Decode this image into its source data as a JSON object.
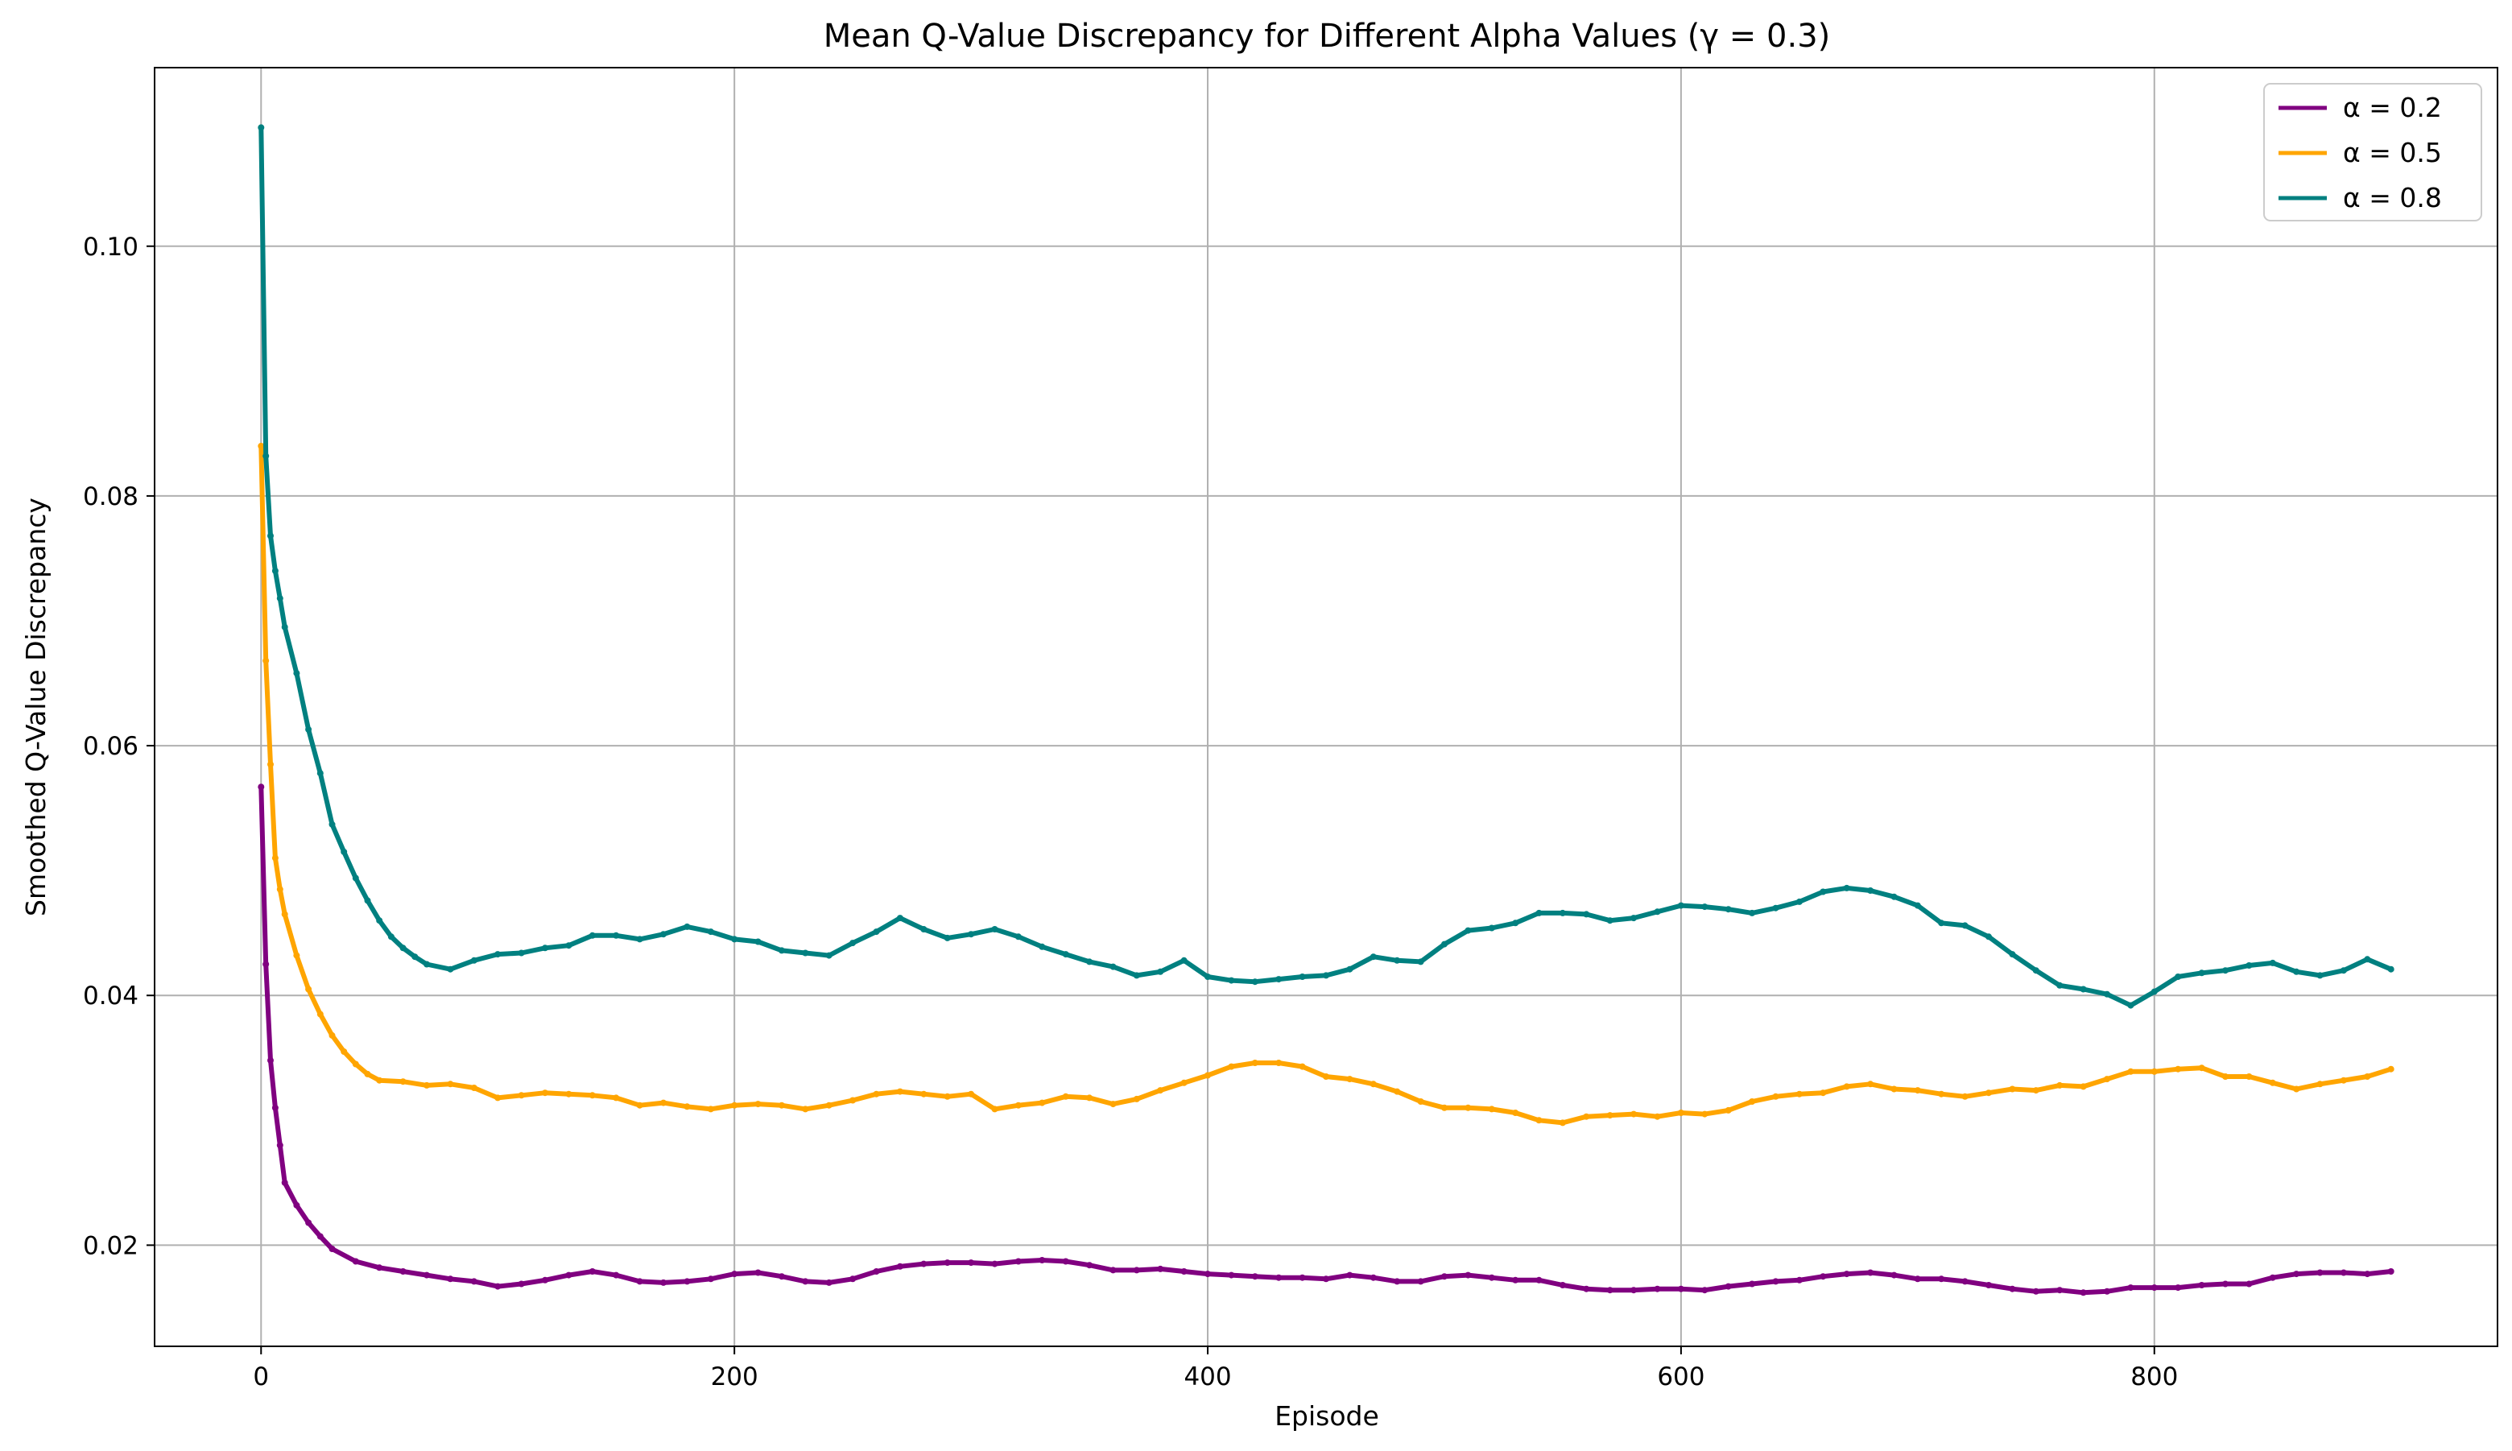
{
  "chart_data": {
    "type": "line",
    "title": "Mean Q-Value Discrepancy for Different Alpha Values (γ = 0.3)",
    "xlabel": "Episode",
    "ylabel": "Smoothed Q-Value Discrepancy",
    "xlim": [
      -45,
      945
    ],
    "ylim": [
      0.0119,
      0.1143
    ],
    "xticks": [
      0,
      200,
      400,
      600,
      800
    ],
    "xtick_labels": [
      "0",
      "200",
      "400",
      "600",
      "800"
    ],
    "yticks": [
      0.02,
      0.04,
      0.06,
      0.08,
      0.1
    ],
    "ytick_labels": [
      "0.02",
      "0.04",
      "0.06",
      "0.08",
      "0.10"
    ],
    "grid": true,
    "legend_position": "top-right",
    "series": [
      {
        "name": "α = 0.2",
        "color": "#800080",
        "x": [
          0,
          2,
          4,
          6,
          8,
          10,
          15,
          20,
          25,
          30,
          40,
          50,
          60,
          70,
          80,
          90,
          100,
          110,
          120,
          130,
          140,
          150,
          160,
          170,
          180,
          190,
          200,
          210,
          220,
          230,
          240,
          250,
          260,
          270,
          280,
          290,
          300,
          310,
          320,
          330,
          340,
          350,
          360,
          370,
          380,
          390,
          400,
          410,
          420,
          430,
          440,
          450,
          460,
          470,
          480,
          490,
          500,
          510,
          520,
          530,
          540,
          550,
          560,
          570,
          580,
          590,
          600,
          610,
          620,
          630,
          640,
          650,
          660,
          670,
          680,
          690,
          700,
          710,
          720,
          730,
          740,
          750,
          760,
          770,
          780,
          790,
          800,
          810,
          820,
          830,
          840,
          850,
          860,
          870,
          880,
          890,
          900
        ],
        "values": [
          0.0567,
          0.0425,
          0.0348,
          0.031,
          0.028,
          0.025,
          0.0232,
          0.0218,
          0.0207,
          0.0197,
          0.0187,
          0.0182,
          0.0179,
          0.0176,
          0.0173,
          0.0171,
          0.0167,
          0.0169,
          0.0172,
          0.0176,
          0.0179,
          0.0176,
          0.0171,
          0.017,
          0.0171,
          0.0173,
          0.0177,
          0.0178,
          0.0175,
          0.0171,
          0.017,
          0.0173,
          0.0179,
          0.0183,
          0.0185,
          0.0186,
          0.0186,
          0.0185,
          0.0187,
          0.0188,
          0.0187,
          0.0184,
          0.018,
          0.018,
          0.0181,
          0.0179,
          0.0177,
          0.0176,
          0.0175,
          0.0174,
          0.0174,
          0.0173,
          0.0176,
          0.0174,
          0.0171,
          0.0171,
          0.0175,
          0.0176,
          0.0174,
          0.0172,
          0.0172,
          0.0168,
          0.0165,
          0.0164,
          0.0164,
          0.0165,
          0.0165,
          0.0164,
          0.0167,
          0.0169,
          0.0171,
          0.0172,
          0.0175,
          0.0177,
          0.0178,
          0.0176,
          0.0173,
          0.0173,
          0.0171,
          0.0168,
          0.0165,
          0.0163,
          0.0164,
          0.0162,
          0.0163,
          0.0166,
          0.0166,
          0.0166,
          0.0168,
          0.0169,
          0.0169,
          0.0174,
          0.0177,
          0.0178,
          0.0178,
          0.0177,
          0.0179
        ]
      },
      {
        "name": "α = 0.5",
        "color": "#FFA500",
        "x": [
          0,
          2,
          4,
          6,
          8,
          10,
          15,
          20,
          25,
          30,
          35,
          40,
          45,
          50,
          60,
          70,
          80,
          90,
          100,
          110,
          120,
          130,
          140,
          150,
          160,
          170,
          180,
          190,
          200,
          210,
          220,
          230,
          240,
          250,
          260,
          270,
          280,
          290,
          300,
          310,
          320,
          330,
          340,
          350,
          360,
          370,
          380,
          390,
          400,
          410,
          420,
          430,
          440,
          450,
          460,
          470,
          480,
          490,
          500,
          510,
          520,
          530,
          540,
          550,
          560,
          570,
          580,
          590,
          600,
          610,
          620,
          630,
          640,
          650,
          660,
          670,
          680,
          690,
          700,
          710,
          720,
          730,
          740,
          750,
          760,
          770,
          780,
          790,
          800,
          810,
          820,
          830,
          840,
          850,
          860,
          870,
          880,
          890,
          900
        ],
        "values": [
          0.084,
          0.0668,
          0.0585,
          0.051,
          0.0485,
          0.0465,
          0.0432,
          0.0405,
          0.0385,
          0.0368,
          0.0355,
          0.0345,
          0.0337,
          0.0332,
          0.0331,
          0.0328,
          0.0329,
          0.0326,
          0.0318,
          0.032,
          0.0322,
          0.0321,
          0.032,
          0.0318,
          0.0312,
          0.0314,
          0.0311,
          0.0309,
          0.0312,
          0.0313,
          0.0312,
          0.0309,
          0.0312,
          0.0316,
          0.0321,
          0.0323,
          0.0321,
          0.0319,
          0.0321,
          0.0309,
          0.0312,
          0.0314,
          0.0319,
          0.0318,
          0.0313,
          0.0317,
          0.0324,
          0.033,
          0.0336,
          0.0343,
          0.0346,
          0.0346,
          0.0343,
          0.0335,
          0.0333,
          0.0329,
          0.0323,
          0.0315,
          0.031,
          0.031,
          0.0309,
          0.0306,
          0.03,
          0.0298,
          0.0303,
          0.0304,
          0.0305,
          0.0303,
          0.0306,
          0.0305,
          0.0308,
          0.0315,
          0.0319,
          0.0321,
          0.0322,
          0.0327,
          0.0329,
          0.0325,
          0.0324,
          0.0321,
          0.0319,
          0.0322,
          0.0325,
          0.0324,
          0.0328,
          0.0327,
          0.0333,
          0.0339,
          0.0339,
          0.0341,
          0.0342,
          0.0335,
          0.0335,
          0.033,
          0.0325,
          0.0329,
          0.0332,
          0.0335,
          0.0341
        ]
      },
      {
        "name": "α = 0.8",
        "color": "#008080",
        "x": [
          0,
          2,
          4,
          6,
          8,
          10,
          15,
          20,
          25,
          30,
          35,
          40,
          45,
          50,
          55,
          60,
          65,
          70,
          80,
          90,
          100,
          110,
          120,
          130,
          140,
          150,
          160,
          170,
          180,
          190,
          200,
          210,
          220,
          230,
          240,
          250,
          260,
          270,
          280,
          290,
          300,
          310,
          320,
          330,
          340,
          350,
          360,
          370,
          380,
          390,
          400,
          410,
          420,
          430,
          440,
          450,
          460,
          470,
          480,
          490,
          500,
          510,
          520,
          530,
          540,
          550,
          560,
          570,
          580,
          590,
          600,
          610,
          620,
          630,
          640,
          650,
          660,
          670,
          680,
          690,
          700,
          710,
          720,
          730,
          740,
          750,
          760,
          770,
          780,
          790,
          800,
          810,
          820,
          830,
          840,
          850,
          860,
          870,
          880,
          890,
          900
        ],
        "values": [
          0.1095,
          0.0832,
          0.0768,
          0.074,
          0.0718,
          0.0695,
          0.0658,
          0.0613,
          0.0578,
          0.0537,
          0.0515,
          0.0494,
          0.0476,
          0.046,
          0.0447,
          0.0438,
          0.0431,
          0.0425,
          0.0421,
          0.0428,
          0.0433,
          0.0434,
          0.0438,
          0.044,
          0.0448,
          0.0448,
          0.0445,
          0.0449,
          0.0455,
          0.0451,
          0.0445,
          0.0443,
          0.0436,
          0.0434,
          0.0432,
          0.0442,
          0.0451,
          0.0462,
          0.0453,
          0.0446,
          0.0449,
          0.0453,
          0.0447,
          0.0439,
          0.0433,
          0.0427,
          0.0423,
          0.0416,
          0.0419,
          0.0428,
          0.0415,
          0.0412,
          0.0411,
          0.0413,
          0.0415,
          0.0416,
          0.0421,
          0.0431,
          0.0428,
          0.0427,
          0.0441,
          0.0452,
          0.0454,
          0.0458,
          0.0466,
          0.0466,
          0.0465,
          0.046,
          0.0462,
          0.0467,
          0.0472,
          0.0471,
          0.0469,
          0.0466,
          0.047,
          0.0475,
          0.0483,
          0.0486,
          0.0484,
          0.0479,
          0.0472,
          0.0458,
          0.0456,
          0.0447,
          0.0433,
          0.042,
          0.0408,
          0.0405,
          0.0401,
          0.0392,
          0.0403,
          0.0415,
          0.0418,
          0.042,
          0.0424,
          0.0426,
          0.0419,
          0.0416,
          0.042,
          0.0429,
          0.0421
        ]
      }
    ]
  }
}
